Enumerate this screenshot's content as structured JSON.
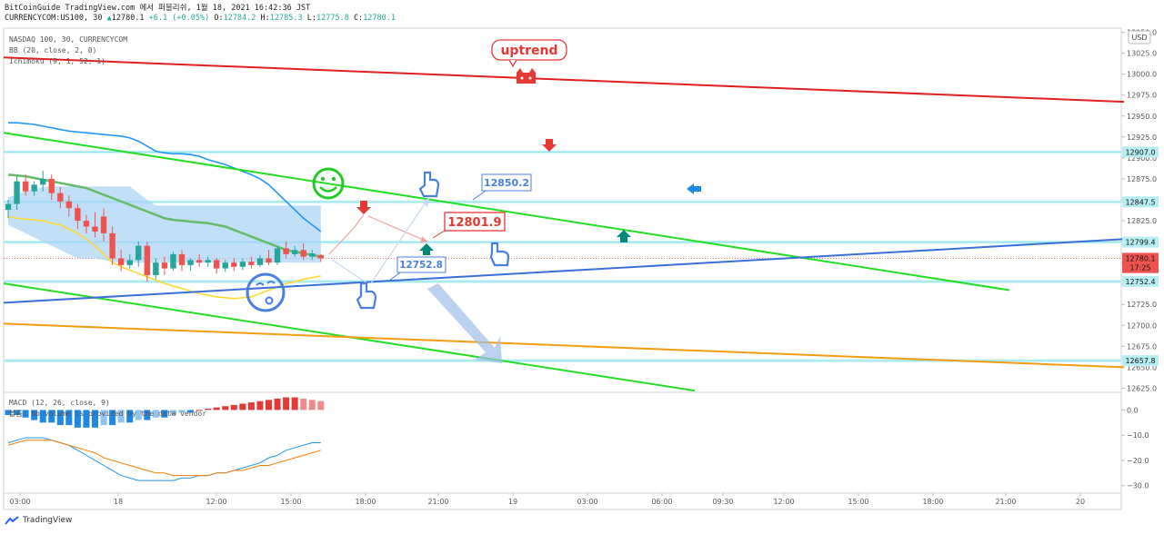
{
  "header": {
    "line1": "BitCoinGuide TradingView.com 에서 퍼블리쉬, 1월 18, 2021 16:42:36 JST",
    "line2_symbol": "CURRENCYCOM:US100, 30",
    "line2_price": "12780.1",
    "line2_change": "+6.1 (+0.05%)",
    "line2_o_label": "O:",
    "line2_o": "12784.2",
    "line2_h_label": "H:",
    "line2_h": "12785.3",
    "line2_l_label": "L:",
    "line2_l": "12775.8",
    "line2_c_label": "C:",
    "line2_c": "12780.1"
  },
  "legend": {
    "symbol": "NASDAQ 100, 30, CURRENCYCOM",
    "bb": "BB (20, close, 2, 0)",
    "ichimoku": "Ichimoku (9, 1, 52, 1)",
    "macd": "MACD (12, 26, close, 9)",
    "volume_note": "볼륨: No volume is provided by the data vendor"
  },
  "annotations": {
    "uptrend": "uptrend",
    "label_12850": "12850.2",
    "label_12801": "12801.9",
    "label_12752": "12752.8"
  },
  "price_axis": {
    "currency": "USD",
    "ticks": [
      "13050.0",
      "13025.0",
      "13000.0",
      "12975.0",
      "12950.0",
      "12925.0",
      "12900.0",
      "12875.0",
      "12850.0",
      "12825.0",
      "12800.0",
      "12775.0",
      "12750.0",
      "12725.0",
      "12700.0",
      "12675.0",
      "12650.0",
      "12625.0"
    ],
    "tags": [
      {
        "text": "12907.0",
        "value": 12907.0,
        "color": "#aee8ee"
      },
      {
        "text": "12847.5",
        "value": 12847.5,
        "color": "#aee8ee"
      },
      {
        "text": "12799.4",
        "value": 12799.4,
        "color": "#aee8ee"
      },
      {
        "text": "12780.1",
        "value": 12780.1,
        "color": "#ef5350"
      },
      {
        "text": "17:25",
        "value": 12769.0,
        "color": "#ef5350"
      },
      {
        "text": "12752.4",
        "value": 12752.4,
        "color": "#aee8ee"
      },
      {
        "text": "12657.8",
        "value": 12657.8,
        "color": "#aee8ee"
      }
    ]
  },
  "macd_axis": {
    "ticks": [
      "0.0",
      "−10.0",
      "−20.0",
      "−30.0"
    ]
  },
  "time_axis": {
    "ticks": [
      "03:00",
      "18",
      "12:00",
      "15:00",
      "18:00",
      "21:00",
      "19",
      "03:00",
      "06:00",
      "09:30",
      "12:00",
      "15:00",
      "18:00",
      "21:00",
      "20"
    ]
  },
  "footer": {
    "brand": "TradingView"
  },
  "chart_data": {
    "type": "line",
    "title": "NASDAQ 100, 30, CURRENCYCOM",
    "price_range": [
      12620,
      13055
    ],
    "macd_range": [
      -33,
      7
    ],
    "candles": [
      {
        "o": 12838,
        "h": 12850,
        "c": 12845,
        "l": 12828
      },
      {
        "o": 12845,
        "h": 12878,
        "c": 12872,
        "l": 12838
      },
      {
        "o": 12872,
        "h": 12880,
        "c": 12860,
        "l": 12855
      },
      {
        "o": 12860,
        "h": 12872,
        "c": 12868,
        "l": 12855
      },
      {
        "o": 12868,
        "h": 12885,
        "c": 12875,
        "l": 12860
      },
      {
        "o": 12875,
        "h": 12880,
        "c": 12858,
        "l": 12850
      },
      {
        "o": 12858,
        "h": 12865,
        "c": 12848,
        "l": 12840
      },
      {
        "o": 12848,
        "h": 12855,
        "c": 12840,
        "l": 12830
      },
      {
        "o": 12840,
        "h": 12845,
        "c": 12825,
        "l": 12815
      },
      {
        "o": 12825,
        "h": 12832,
        "c": 12818,
        "l": 12810
      },
      {
        "o": 12818,
        "h": 12835,
        "c": 12812,
        "l": 12805
      },
      {
        "o": 12830,
        "h": 12840,
        "c": 12810,
        "l": 12800
      },
      {
        "o": 12810,
        "h": 12818,
        "c": 12780,
        "l": 12772
      },
      {
        "o": 12780,
        "h": 12790,
        "c": 12772,
        "l": 12765
      },
      {
        "o": 12772,
        "h": 12785,
        "c": 12778,
        "l": 12768
      },
      {
        "o": 12778,
        "h": 12800,
        "c": 12795,
        "l": 12770
      },
      {
        "o": 12795,
        "h": 12800,
        "c": 12760,
        "l": 12752
      },
      {
        "o": 12760,
        "h": 12780,
        "c": 12775,
        "l": 12755
      },
      {
        "o": 12775,
        "h": 12782,
        "c": 12768,
        "l": 12760
      },
      {
        "o": 12768,
        "h": 12788,
        "c": 12785,
        "l": 12765
      },
      {
        "o": 12785,
        "h": 12790,
        "c": 12772,
        "l": 12765
      },
      {
        "o": 12772,
        "h": 12780,
        "c": 12778,
        "l": 12765
      },
      {
        "o": 12778,
        "h": 12785,
        "c": 12775,
        "l": 12770
      },
      {
        "o": 12775,
        "h": 12782,
        "c": 12778,
        "l": 12770
      },
      {
        "o": 12778,
        "h": 12780,
        "c": 12768,
        "l": 12762
      },
      {
        "o": 12768,
        "h": 12778,
        "c": 12775,
        "l": 12764
      },
      {
        "o": 12775,
        "h": 12780,
        "c": 12770,
        "l": 12765
      },
      {
        "o": 12770,
        "h": 12780,
        "c": 12776,
        "l": 12766
      },
      {
        "o": 12776,
        "h": 12782,
        "c": 12772,
        "l": 12768
      },
      {
        "o": 12772,
        "h": 12784,
        "c": 12780,
        "l": 12770
      },
      {
        "o": 12780,
        "h": 12790,
        "c": 12775,
        "l": 12772
      },
      {
        "o": 12775,
        "h": 12795,
        "c": 12792,
        "l": 12772
      },
      {
        "o": 12792,
        "h": 12800,
        "c": 12785,
        "l": 12780
      },
      {
        "o": 12785,
        "h": 12795,
        "c": 12790,
        "l": 12782
      },
      {
        "o": 12790,
        "h": 12798,
        "c": 12782,
        "l": 12778
      },
      {
        "o": 12782,
        "h": 12790,
        "c": 12786,
        "l": 12778
      },
      {
        "o": 12784,
        "h": 12785,
        "c": 12780,
        "l": 12776
      }
    ],
    "bb_upper": [
      12942,
      12942,
      12941,
      12940,
      12938,
      12936,
      12934,
      12932,
      12931,
      12930,
      12929,
      12928,
      12927,
      12926,
      12924,
      12920,
      12914,
      12908,
      12906,
      12905,
      12905,
      12904,
      12902,
      12898,
      12895,
      12892,
      12888,
      12884,
      12880,
      12875,
      12868,
      12858,
      12848,
      12838,
      12828,
      12820,
      12812
    ],
    "bb_basis": [
      12880,
      12879,
      12878,
      12876,
      12874,
      12872,
      12870,
      12868,
      12866,
      12864,
      12860,
      12856,
      12852,
      12848,
      12844,
      12840,
      12836,
      12832,
      12828,
      12826,
      12825,
      12824,
      12823,
      12822,
      12820,
      12818,
      12814,
      12810,
      12806,
      12802,
      12798,
      12794,
      12790,
      12788,
      12786,
      12784,
      12782
    ],
    "bb_lower": [
      12830,
      12828,
      12827,
      12826,
      12825,
      12822,
      12820,
      12815,
      12810,
      12803,
      12795,
      12785,
      12775,
      12770,
      12766,
      12762,
      12758,
      12754,
      12750,
      12747,
      12744,
      12741,
      12738,
      12736,
      12734,
      12733,
      12732,
      12733,
      12734,
      12738,
      12742,
      12746,
      12750,
      12752,
      12755,
      12757,
      12759
    ],
    "cloud_top": [
      12853,
      12856,
      12860,
      12862,
      12865,
      12866,
      12866,
      12866,
      12866,
      12866,
      12866,
      12866,
      12866,
      12866,
      12866,
      12858,
      12850,
      12843,
      12843,
      12843,
      12843,
      12843,
      12843,
      12843,
      12843,
      12843,
      12843,
      12843,
      12843,
      12843,
      12843,
      12843,
      12843,
      12843,
      12843,
      12843,
      12843
    ],
    "cloud_bottom": [
      12820,
      12815,
      12810,
      12805,
      12800,
      12795,
      12790,
      12785,
      12780,
      12780,
      12780,
      12778,
      12776,
      12775,
      12775,
      12775,
      12775,
      12775,
      12775,
      12775,
      12775,
      12775,
      12775,
      12775,
      12775,
      12775,
      12775,
      12775,
      12775,
      12775,
      12775,
      12775,
      12775,
      12775,
      12775,
      12775,
      12775
    ],
    "macd_hist": [
      -2,
      -2,
      -3,
      -4,
      -5,
      -5,
      -6,
      -6,
      -7,
      -7,
      -7,
      -6,
      -6,
      -5,
      -5,
      -4,
      -4,
      -3,
      -3,
      -2,
      -1,
      -1,
      0,
      0.5,
      1,
      1.5,
      2,
      2.5,
      3,
      3.5,
      4,
      4.5,
      5,
      5,
      4.5,
      4,
      3.5
    ],
    "macd_line": [
      -13,
      -12,
      -11,
      -11,
      -11,
      -12,
      -13,
      -14,
      -16,
      -18,
      -20,
      -22,
      -24,
      -26,
      -27,
      -28,
      -28,
      -28,
      -28,
      -28,
      -27,
      -27,
      -26,
      -26,
      -25,
      -25,
      -24,
      -23,
      -22,
      -21,
      -19,
      -18,
      -16,
      -15,
      -14,
      -13,
      -13
    ],
    "signal_line": [
      -14,
      -13,
      -12,
      -12,
      -12,
      -12,
      -13,
      -14,
      -15,
      -16,
      -17,
      -19,
      -20,
      -21,
      -22,
      -23,
      -24,
      -25,
      -25,
      -26,
      -26,
      -26,
      -26,
      -26,
      -25,
      -25,
      -24,
      -24,
      -23,
      -22,
      -22,
      -21,
      -20,
      -19,
      -18,
      -17,
      -16
    ],
    "trend_lines": [
      {
        "name": "red",
        "color": "#e02020",
        "p1": {
          "t": 0,
          "v": 13020
        },
        "p2": {
          "t": 1232,
          "v": 12967
        }
      },
      {
        "name": "green-upper",
        "color": "#22dd22",
        "p1": {
          "t": 0,
          "v": 12930
        },
        "p2": {
          "t": 1106,
          "v": 12742
        }
      },
      {
        "name": "green-lower",
        "color": "#22dd22",
        "p1": {
          "t": 0,
          "v": 12750
        },
        "p2": {
          "t": 760,
          "v": 12622
        }
      },
      {
        "name": "blue",
        "color": "#3a6fd8",
        "p1": {
          "t": 0,
          "v": 12727
        },
        "p2": {
          "t": 1232,
          "v": 12803
        }
      },
      {
        "name": "orange",
        "color": "#f39c12",
        "p1": {
          "t": 0,
          "v": 12702
        },
        "p2": {
          "t": 1232,
          "v": 12650
        }
      }
    ]
  }
}
